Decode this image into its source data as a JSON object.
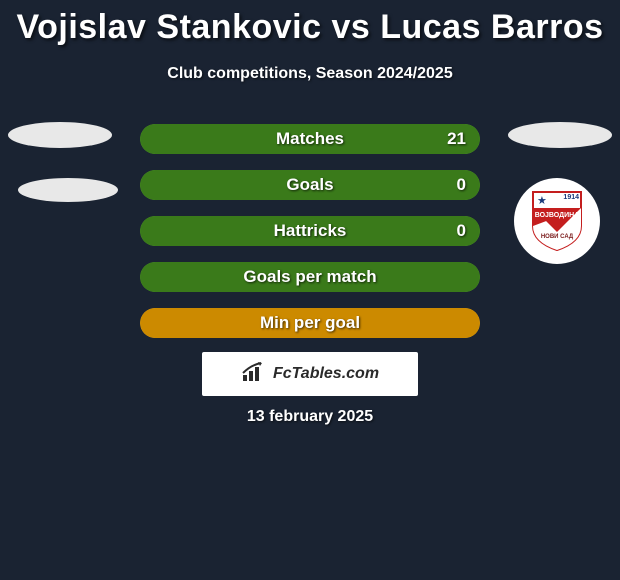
{
  "title": "Vojislav Stankovic vs Lucas Barros",
  "subtitle": "Club competitions, Season 2024/2025",
  "date": "13 february 2025",
  "attribution": {
    "text": "FcTables.com"
  },
  "colors": {
    "page_bg": "#1a2332",
    "title_color": "#ffffff",
    "bar_green_fill": "#3a7a1a",
    "bar_green_border": "#6cbf3a",
    "bar_orange_fill": "#cc8a00",
    "bar_orange_border": "#e6b84d",
    "ellipse_bg": "#e8e8e8",
    "crest_red": "#c41e1e",
    "crest_white": "#ffffff",
    "crest_blue": "#1a3a7a"
  },
  "crest": {
    "star": "★",
    "year": "1914",
    "line1": "ВОЈВОДИНА",
    "line2": "НОВИ САД"
  },
  "bars": [
    {
      "label": "Matches",
      "value_right": "21",
      "fill_pct": 100,
      "style": "green"
    },
    {
      "label": "Goals",
      "value_right": "0",
      "fill_pct": 100,
      "style": "green"
    },
    {
      "label": "Hattricks",
      "value_right": "0",
      "fill_pct": 100,
      "style": "green"
    },
    {
      "label": "Goals per match",
      "value_right": "",
      "fill_pct": 100,
      "style": "green"
    },
    {
      "label": "Min per goal",
      "value_right": "",
      "fill_pct": 100,
      "style": "orange"
    }
  ]
}
